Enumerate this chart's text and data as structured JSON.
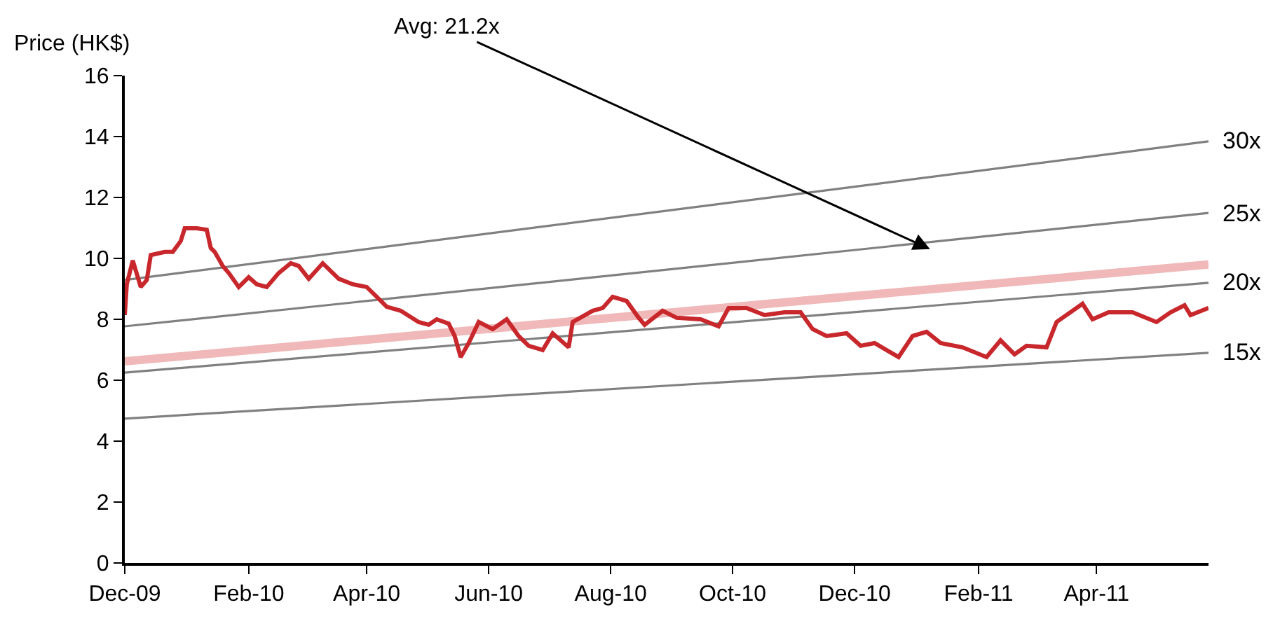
{
  "chart_data": {
    "type": "line",
    "ylabel": "Price (HK$)",
    "xlim": [
      "2009-12-01",
      "2011-05-27"
    ],
    "xticks": [
      {
        "value": "2009-12-01",
        "label": "Dec-09"
      },
      {
        "value": "2010-02-01",
        "label": "Feb-10"
      },
      {
        "value": "2010-04-01",
        "label": "Apr-10"
      },
      {
        "value": "2010-06-01",
        "label": "Jun-10"
      },
      {
        "value": "2010-08-01",
        "label": "Aug-10"
      },
      {
        "value": "2010-10-01",
        "label": "Oct-10"
      },
      {
        "value": "2010-12-01",
        "label": "Dec-10"
      },
      {
        "value": "2011-02-01",
        "label": "Feb-11"
      },
      {
        "value": "2011-04-01",
        "label": "Apr-11"
      }
    ],
    "ylim": [
      0,
      16
    ],
    "yticks": [
      0,
      2,
      4,
      6,
      8,
      10,
      12,
      14,
      16
    ],
    "marker": "none",
    "line_style": "solid",
    "annotations": [
      "Avg: 21.2x"
    ],
    "series": [
      {
        "name": "30x",
        "color": "#808080",
        "x": [
          "2009-12-01",
          "2011-05-27"
        ],
        "values": [
          9.29,
          13.84
        ]
      },
      {
        "name": "25x",
        "color": "#808080",
        "x": [
          "2009-12-01",
          "2011-05-27"
        ],
        "values": [
          7.77,
          11.49
        ]
      },
      {
        "name": "20x",
        "color": "#808080",
        "x": [
          "2009-12-01",
          "2011-05-27"
        ],
        "values": [
          6.25,
          9.2
        ]
      },
      {
        "name": "15x",
        "color": "#808080",
        "x": [
          "2009-12-01",
          "2011-05-27"
        ],
        "values": [
          4.74,
          6.9
        ]
      },
      {
        "color": "#f0b8b8",
        "x": [
          "2009-12-01",
          "2011-05-27"
        ],
        "values": [
          6.62,
          9.8
        ]
      },
      {
        "color": "#c8272c",
        "x": [
          "2009-12-01",
          "2009-12-02",
          "2009-12-05",
          "2009-12-09",
          "2009-12-12",
          "2009-12-14",
          "2009-12-21",
          "2009-12-25",
          "2009-12-29",
          "2009-12-31",
          "2010-01-06",
          "2010-01-11",
          "2010-01-13",
          "2010-01-15",
          "2010-01-19",
          "2010-01-22",
          "2010-01-27",
          "2010-02-01",
          "2010-02-05",
          "2010-02-10",
          "2010-02-16",
          "2010-02-22",
          "2010-02-26",
          "2010-03-03",
          "2010-03-10",
          "2010-03-18",
          "2010-03-25",
          "2010-04-01",
          "2010-04-06",
          "2010-04-11",
          "2010-04-18",
          "2010-04-27",
          "2010-05-02",
          "2010-05-06",
          "2010-05-12",
          "2010-05-15",
          "2010-05-18",
          "2010-05-22",
          "2010-05-27",
          "2010-06-03",
          "2010-06-10",
          "2010-06-16",
          "2010-06-21",
          "2010-06-28",
          "2010-07-03",
          "2010-07-11",
          "2010-07-13",
          "2010-07-23",
          "2010-07-28",
          "2010-08-02",
          "2010-08-09",
          "2010-08-15",
          "2010-08-18",
          "2010-08-27",
          "2010-09-03",
          "2010-09-15",
          "2010-09-24",
          "2010-09-29",
          "2010-10-08",
          "2010-10-17",
          "2010-10-27",
          "2010-11-04",
          "2010-11-10",
          "2010-11-17",
          "2010-11-27",
          "2010-12-04",
          "2010-12-11",
          "2010-12-23",
          "2010-12-30",
          "2011-01-06",
          "2011-01-13",
          "2011-01-24",
          "2011-02-05",
          "2011-02-12",
          "2011-02-19",
          "2011-02-25",
          "2011-03-07",
          "2011-03-12",
          "2011-03-25",
          "2011-03-30",
          "2011-04-07",
          "2011-04-19",
          "2011-05-01",
          "2011-05-08",
          "2011-05-15",
          "2011-05-18",
          "2011-05-27"
        ],
        "values": [
          8.14,
          9.15,
          9.93,
          9.06,
          9.29,
          10.11,
          10.21,
          10.21,
          10.57,
          10.99,
          10.99,
          10.94,
          10.34,
          10.21,
          9.75,
          9.52,
          9.06,
          9.38,
          9.15,
          9.06,
          9.52,
          9.84,
          9.75,
          9.33,
          9.84,
          9.33,
          9.15,
          9.06,
          8.74,
          8.41,
          8.28,
          7.91,
          7.82,
          8.0,
          7.86,
          7.45,
          6.76,
          7.22,
          7.91,
          7.68,
          8.0,
          7.45,
          7.13,
          6.99,
          7.54,
          7.08,
          7.91,
          8.28,
          8.37,
          8.74,
          8.6,
          8.05,
          7.82,
          8.28,
          8.05,
          8.0,
          7.77,
          8.37,
          8.37,
          8.14,
          8.23,
          8.23,
          7.68,
          7.45,
          7.54,
          7.13,
          7.22,
          6.76,
          7.45,
          7.59,
          7.22,
          7.08,
          6.76,
          7.31,
          6.85,
          7.13,
          7.08,
          7.91,
          8.51,
          8.0,
          8.23,
          8.23,
          7.91,
          8.23,
          8.46,
          8.14,
          8.37
        ]
      }
    ]
  }
}
